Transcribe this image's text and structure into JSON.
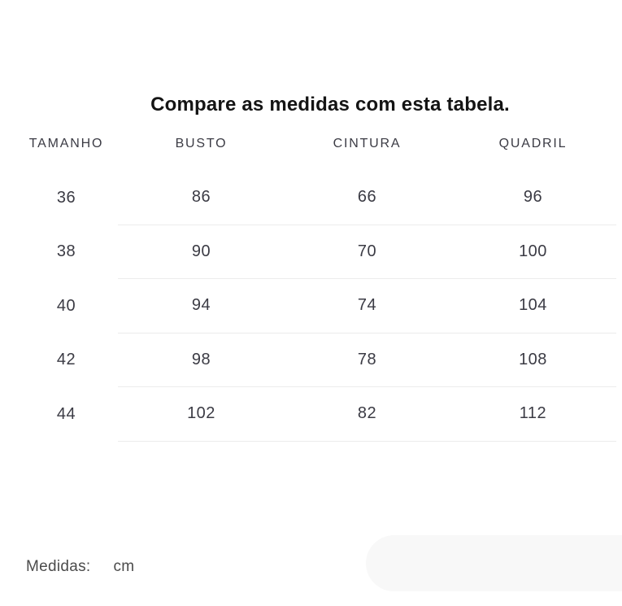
{
  "title": "Compare as medidas com esta tabela.",
  "table": {
    "headers": [
      "TAMANHO",
      "BUSTO",
      "CINTURA",
      "QUADRIL"
    ],
    "rows": [
      [
        "36",
        "86",
        "66",
        "96"
      ],
      [
        "38",
        "90",
        "70",
        "100"
      ],
      [
        "40",
        "94",
        "74",
        "104"
      ],
      [
        "42",
        "98",
        "78",
        "108"
      ],
      [
        "44",
        "102",
        "82",
        "112"
      ]
    ]
  },
  "footer": {
    "label": "Medidas:",
    "unit": "cm"
  },
  "colors": {
    "background": "#ffffff",
    "title_text": "#141414",
    "table_text": "#3b3b44",
    "footer_text": "#4b4b4b",
    "divider": "#ececec",
    "pill_background": "#f8f8f8"
  }
}
